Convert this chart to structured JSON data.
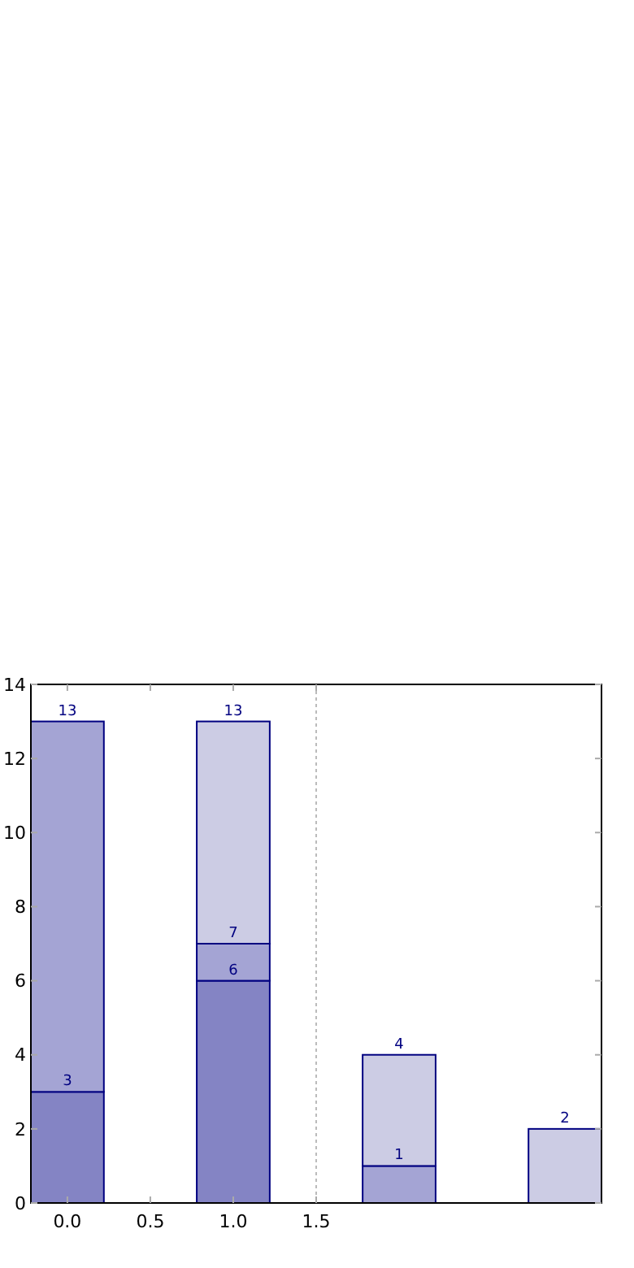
{
  "chart_data": {
    "type": "bar",
    "stacked": true,
    "x": [
      0,
      1,
      2,
      3
    ],
    "series": [
      {
        "color": "#8484c4",
        "values": [
          3,
          6,
          0,
          0
        ]
      },
      {
        "color": "#a4a4d4",
        "values": [
          10,
          1,
          1,
          0
        ]
      },
      {
        "color": "#cccce4",
        "values": [
          0,
          6,
          3,
          2
        ]
      }
    ],
    "annotations": [
      {
        "text": "3",
        "x": 0,
        "y": 3
      },
      {
        "text": "13",
        "x": 0,
        "y": 13
      },
      {
        "text": "6",
        "x": 1,
        "y": 6
      },
      {
        "text": "7",
        "x": 1,
        "y": 7
      },
      {
        "text": "13",
        "x": 1,
        "y": 13
      },
      {
        "text": "1",
        "x": 2,
        "y": 1
      },
      {
        "text": "4",
        "x": 2,
        "y": 4
      },
      {
        "text": "2",
        "x": 3,
        "y": 2
      }
    ],
    "xlim": [
      -0.22,
      3.22
    ],
    "ylim": [
      0,
      14
    ],
    "xticks": [
      {
        "value": 0,
        "label": "0.0"
      },
      {
        "value": 0.5,
        "label": "0.5"
      },
      {
        "value": 1,
        "label": "1.0"
      },
      {
        "value": 1.5,
        "label": "1.5"
      }
    ],
    "yticks": [
      0,
      2,
      4,
      6,
      8,
      10,
      12,
      14
    ],
    "ref_lines": [
      {
        "axis": "x",
        "value": 1.5,
        "color": "#bbbbbb",
        "line_style": "dotted"
      }
    ],
    "grid": false
  }
}
